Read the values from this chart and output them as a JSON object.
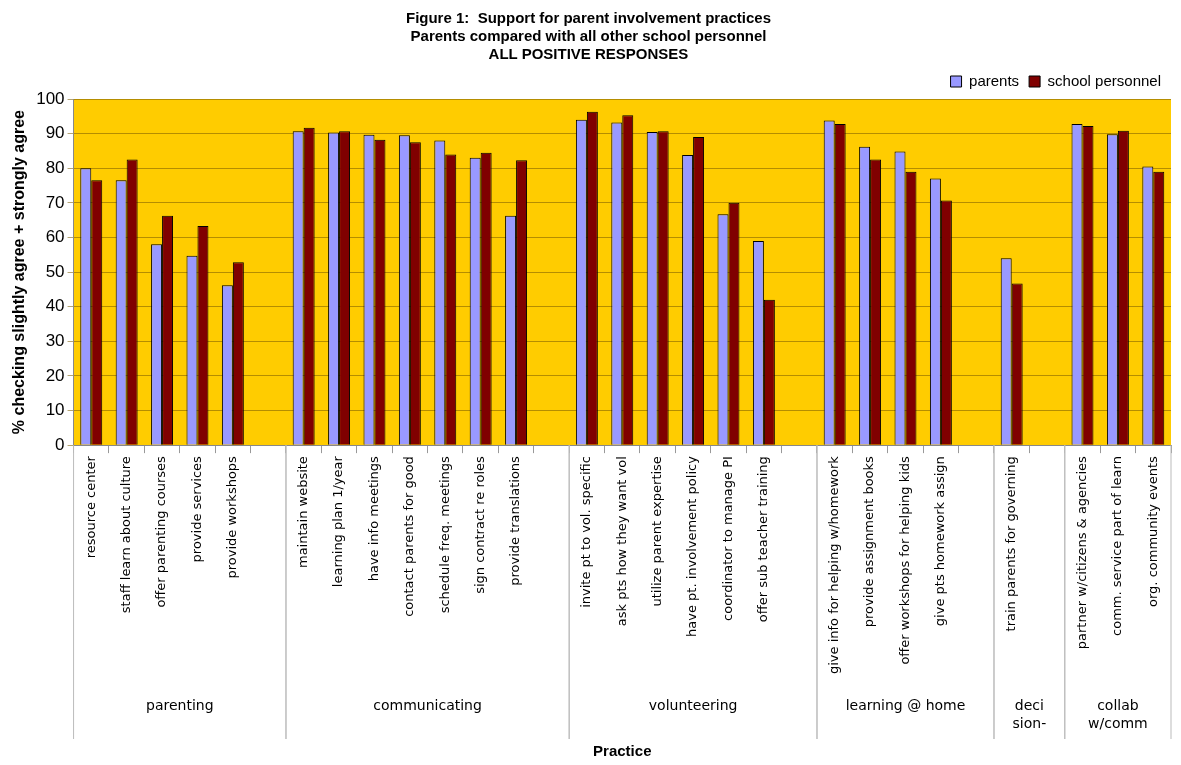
{
  "chart_data": {
    "type": "bar",
    "title": "Figure 1:  Support for parent involvement practices",
    "subtitle": "Parents compared with all other school personnel\nALL POSITIVE RESPONSES",
    "xlabel": "Practice",
    "ylabel": "% checking slightly agree + strongly agree",
    "categories": [
      "resource center",
      "staff learn about culture",
      "offer parenting courses",
      "provide services",
      "provide workshops",
      null,
      "maintain website",
      "learning plan 1/year",
      "have info meetings",
      "contact parents for good",
      "schedule freq. meetings",
      "sign contract re roles",
      "provide translations",
      null,
      "invite pt to vol. specific",
      "ask pts how they want vol",
      "utilize parent expertise",
      "have pt. involvement policy",
      "coordinator to manage PI",
      "offer sub teacher training",
      null,
      "give info for helping w/homework",
      "provide assignment books",
      "offer workshops for helping kids",
      "give pts homework assign",
      null,
      "train parents for governing",
      null,
      "partner w/citizens & agencies",
      "comm. service part of learn",
      "org. community events"
    ],
    "series": [
      {
        "name": "parents",
        "color": "#9999ff",
        "values": [
          80,
          76.5,
          58,
          54.7,
          46.2,
          null,
          90.7,
          90.3,
          89.7,
          89.5,
          88,
          83,
          66.3,
          null,
          94,
          93.2,
          90.5,
          83.8,
          66.7,
          59,
          null,
          93.8,
          86.2,
          84.8,
          77,
          null,
          54,
          null,
          92.8,
          89.8,
          80.5
        ]
      },
      {
        "name": "school personnel",
        "color": "#800000",
        "values": [
          76.5,
          82.5,
          66.3,
          63.3,
          52.8,
          null,
          91.7,
          90.7,
          88.2,
          87.5,
          84,
          84.5,
          82.3,
          null,
          96.3,
          95.3,
          90.7,
          89,
          70,
          42,
          null,
          92.8,
          82.5,
          79,
          70.7,
          null,
          46.7,
          null,
          92.2,
          90.8,
          79
        ]
      }
    ],
    "annotations": [
      "parenting",
      "communicating",
      "volunteering",
      "learning @ home",
      "deci sion-",
      "collab w/comm"
    ],
    "ylim": [
      0,
      100
    ],
    "yticks": [
      0,
      10,
      20,
      30,
      40,
      50,
      60,
      70,
      80,
      90,
      100
    ],
    "grid": "y",
    "legend": "top right"
  }
}
